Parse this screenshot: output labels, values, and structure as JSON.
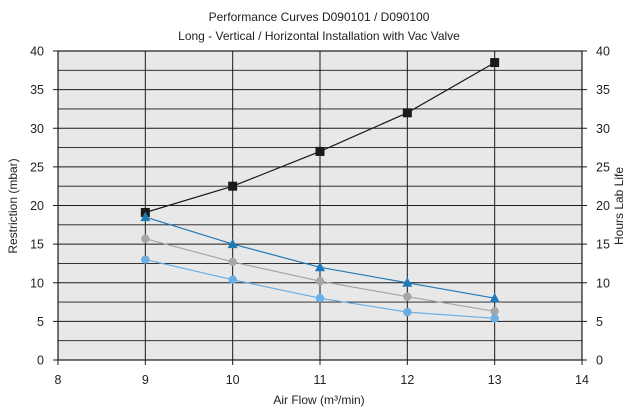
{
  "chart_data": {
    "type": "line",
    "title": "Performance Curves D090101 / D090100",
    "subtitle": "Long - Vertical / Horizontal Installation with Vac Valve",
    "xlabel": "Air Flow (m³/min)",
    "ylabel": "Restriction (mbar)",
    "y2label": "Hours Lab Life",
    "xlim": [
      8,
      14
    ],
    "ylim": [
      0,
      40
    ],
    "y2lim": [
      0,
      40
    ],
    "x_ticks": [
      "8",
      "9",
      "10",
      "11",
      "12",
      "13",
      "14"
    ],
    "y_ticks": [
      "0",
      "5",
      "10",
      "15",
      "20",
      "25",
      "30",
      "35",
      "40"
    ],
    "y2_ticks": [
      "0",
      "5",
      "10",
      "15",
      "20",
      "25",
      "30",
      "35",
      "40"
    ],
    "grid": true,
    "background_color": "#e8e8e8",
    "series": [
      {
        "axis": "right",
        "color": "#1a1a1a",
        "marker": "square",
        "x": [
          9,
          10,
          11,
          12,
          13
        ],
        "y": [
          19.1,
          22.5,
          27.0,
          32.0,
          38.5
        ]
      },
      {
        "axis": "left",
        "color": "#1f7ab8",
        "marker": "triangle",
        "x": [
          9,
          10,
          11,
          12,
          13
        ],
        "y": [
          18.5,
          15.0,
          12.0,
          10.0,
          8.0
        ]
      },
      {
        "axis": "left",
        "color": "#a6a6a6",
        "marker": "circle",
        "x": [
          9,
          10,
          11,
          12,
          13
        ],
        "y": [
          15.7,
          12.7,
          10.2,
          8.2,
          6.3
        ]
      },
      {
        "axis": "left",
        "color": "#6aaee3",
        "marker": "circle",
        "x": [
          9,
          10,
          11,
          12,
          13
        ],
        "y": [
          13.0,
          10.4,
          8.0,
          6.2,
          5.4
        ]
      }
    ]
  }
}
